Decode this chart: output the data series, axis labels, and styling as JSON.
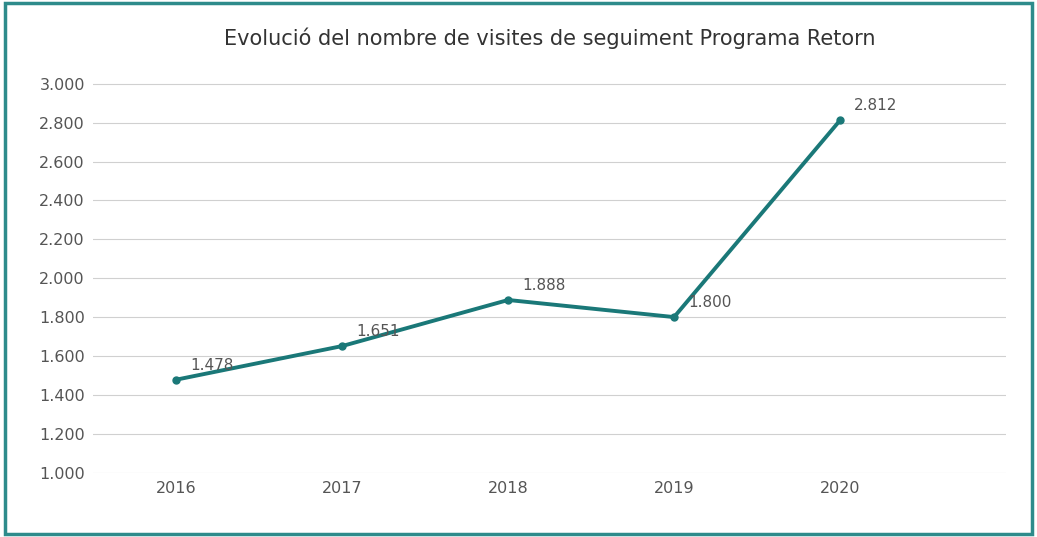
{
  "title": "Evolució del nombre de visites de seguiment Programa Retorn",
  "years": [
    2016,
    2017,
    2018,
    2019,
    2020
  ],
  "values": [
    1478,
    1651,
    1888,
    1800,
    2812
  ],
  "labels": [
    "1.478",
    "1.651",
    "1.888",
    "1.800",
    "2.812"
  ],
  "line_color": "#1a7878",
  "line_width": 2.8,
  "background_color": "#ffffff",
  "border_color": "#2e8b8b",
  "ylim": [
    1000,
    3100
  ],
  "yticks": [
    1000,
    1200,
    1400,
    1600,
    1800,
    2000,
    2200,
    2400,
    2600,
    2800,
    3000
  ],
  "ytick_labels": [
    "1.000",
    "1.200",
    "1.400",
    "1.600",
    "1.800",
    "2.000",
    "2.200",
    "2.400",
    "2.600",
    "2.800",
    "3.000"
  ],
  "grid_color": "#d0d0d0",
  "title_fontsize": 15,
  "tick_fontsize": 11.5,
  "label_fontsize": 11,
  "label_color": "#555555",
  "xlim_left": 2015.5,
  "xlim_right": 2021.0
}
